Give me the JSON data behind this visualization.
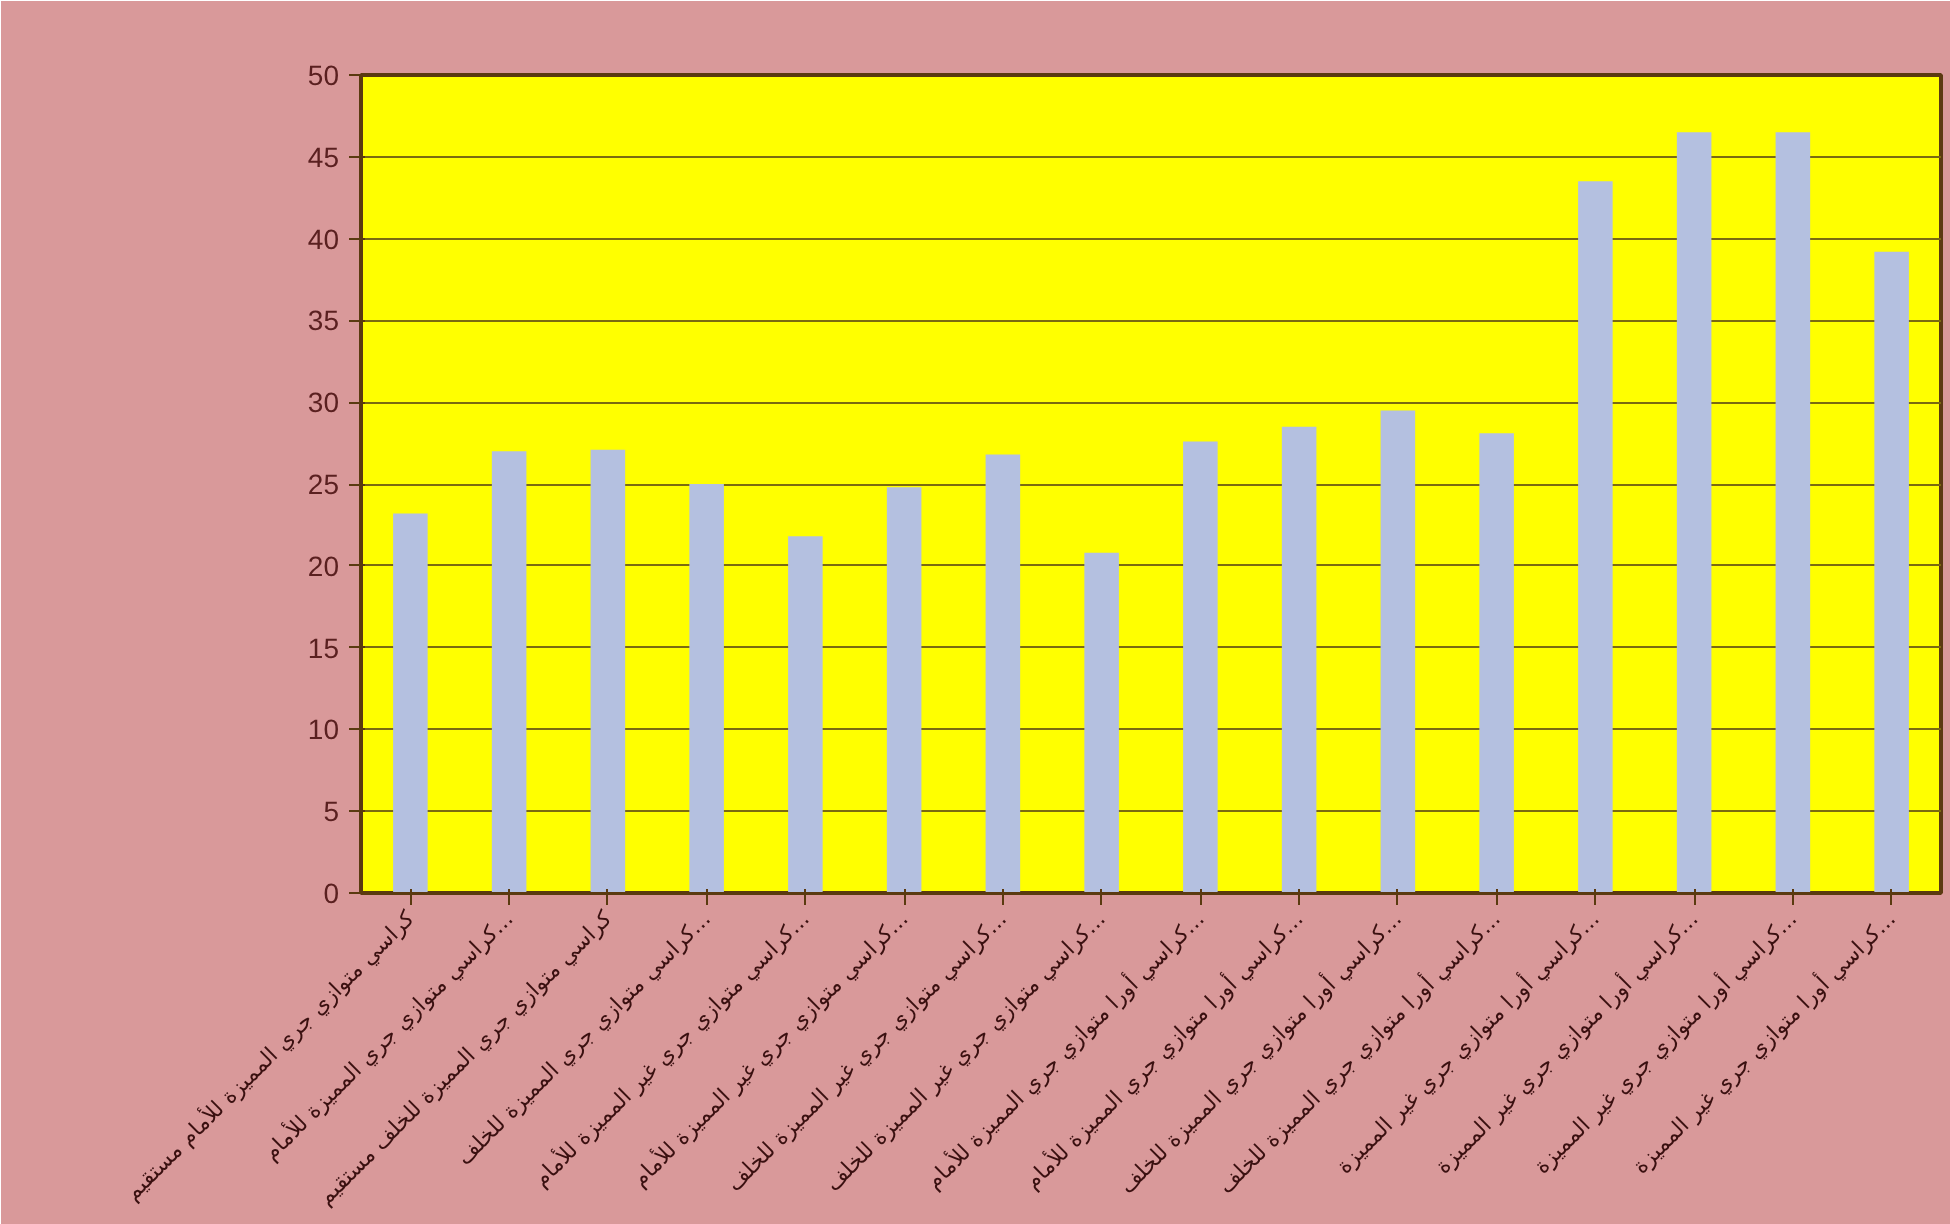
{
  "chart_data": {
    "type": "bar",
    "categories": [
      "كراسي متوازي جري المميزة للأمام مستقيم",
      "كراسي متوازي جري المميزة للأمام...",
      "كراسي متوازي جري المميزة للخلف مستقيم",
      "كراسي متوازي جري المميزة للخلف...",
      "كراسي متوازي جري غير المميزة للأمام...",
      "كراسي متوازي جري غير المميزة للأمام...",
      "كراسي متوازي جري غير المميزة للخلف...",
      "كراسي متوازي جري غير المميزة للخلف...",
      "كراسي أورا متوازي جري المميزة للأمام...",
      "كراسي أورا متوازي جري المميزة للأمام...",
      "كراسي أورا متوازي جري المميزة للخلف...",
      "كراسي أورا متوازي جري المميزة للخلف...",
      "كراسي أورا متوازي جري غير المميزة...",
      "كراسي أورا متوازي جري غير المميزة...",
      "كراسي أورا متوازي جري غير المميزة...",
      "كراسي أورا متوازي جري غير المميزة..."
    ],
    "values": [
      23.2,
      27,
      27.1,
      25,
      21.8,
      24.8,
      26.8,
      20.8,
      27.6,
      28.5,
      29.5,
      28.1,
      43.5,
      46.5,
      46.5,
      39.2
    ],
    "color": "#b4c0e0",
    "ylim": [
      0,
      50
    ],
    "yticks": [
      0,
      5,
      10,
      15,
      20,
      25,
      30,
      35,
      40,
      45,
      50
    ],
    "grid": "y"
  }
}
